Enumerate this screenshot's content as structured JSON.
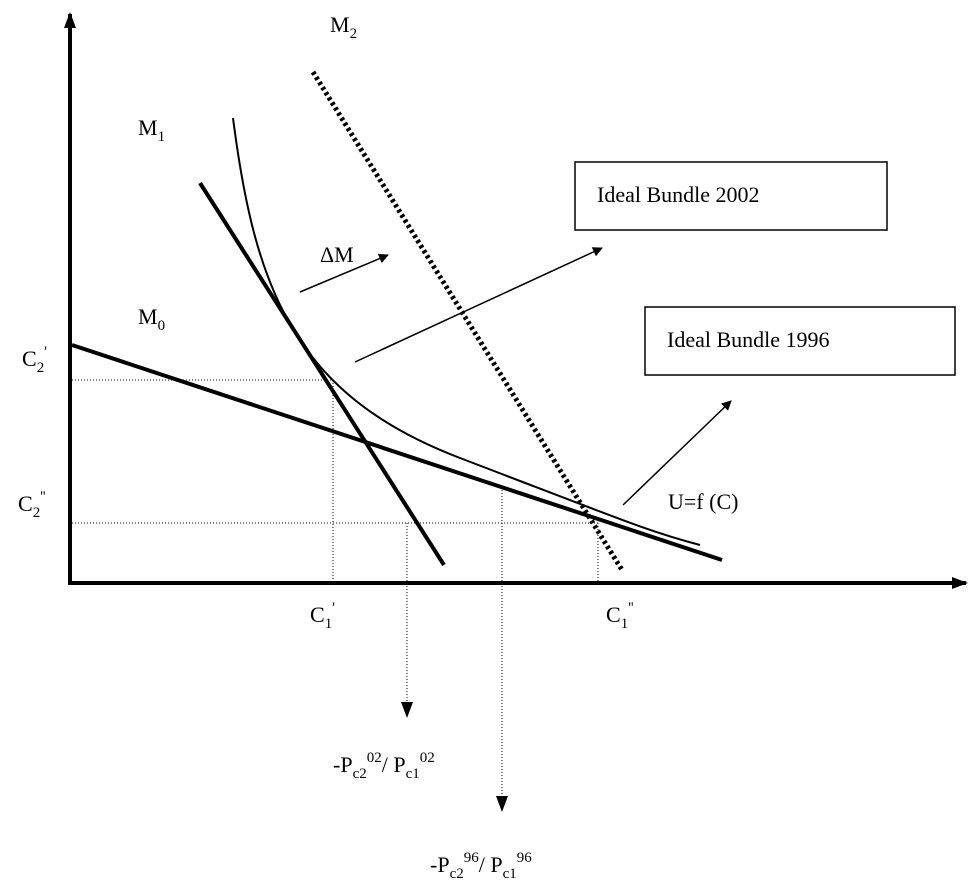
{
  "axis_labels": {
    "c2_prime": [
      "C",
      "2",
      "'"
    ],
    "c2_double_prime": [
      "C",
      "2",
      "''"
    ],
    "c1_prime": [
      "C",
      "1",
      "'"
    ],
    "c1_double_prime": [
      "C",
      "1",
      "''"
    ]
  },
  "lines": {
    "m0": [
      "M",
      "0"
    ],
    "m1": [
      "M",
      "1"
    ],
    "m2": [
      "M",
      "2"
    ],
    "delta_m": "ΔM",
    "utility": "U=f (C)"
  },
  "boxes": [
    "Ideal Bundle 2002",
    "Ideal Bundle 1996"
  ],
  "slopes": [
    [
      "-P",
      "c2",
      "02",
      "/ P",
      "c1",
      "02"
    ],
    [
      "-P",
      "c2",
      "96",
      "/ P",
      "c1",
      "96"
    ]
  ]
}
